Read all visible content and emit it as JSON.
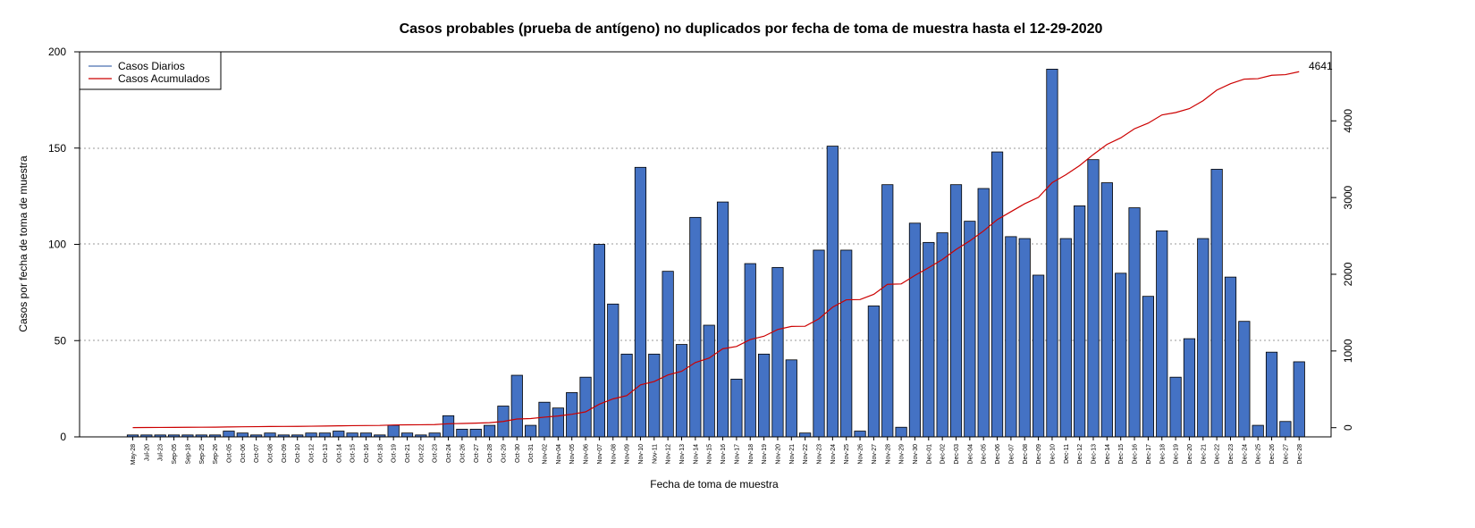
{
  "colors": {
    "bar_fill": "#4472C4",
    "bar_stroke": "#000000",
    "cumulative_line": "#CC0000",
    "daily_legend_line": "#4A72B0",
    "grid": "#999999"
  },
  "chart_data": {
    "type": "bar",
    "title": "Casos probables (prueba de antígeno) no duplicados por fecha de toma de muestra hasta el 12-29-2020",
    "xlabel": "Fecha de toma de muestra",
    "ylabel": "Casos por fecha de toma de muestra",
    "ylim": [
      0,
      200
    ],
    "y_ticks": [
      "0",
      "50",
      "100",
      "150",
      "200"
    ],
    "y2lim": [
      -120,
      4900
    ],
    "y2_ticks": [
      "0",
      "1000",
      "2000",
      "3000",
      "4000"
    ],
    "grid": "horizontal dotted at 50, 100, 150",
    "legend": {
      "placement": "top-left",
      "entries": [
        "Casos Diarios",
        "Casos Acumulados"
      ]
    },
    "end_label": "4641",
    "categories": [
      "May-28",
      "Jul-20",
      "Jul-23",
      "Sep-05",
      "Sep-18",
      "Sep-25",
      "Sep-26",
      "Oct-05",
      "Oct-06",
      "Oct-07",
      "Oct-08",
      "Oct-09",
      "Oct-10",
      "Oct-12",
      "Oct-13",
      "Oct-14",
      "Oct-15",
      "Oct-16",
      "Oct-18",
      "Oct-19",
      "Oct-21",
      "Oct-22",
      "Oct-23",
      "Oct-24",
      "Oct-26",
      "Oct-27",
      "Oct-28",
      "Oct-29",
      "Oct-30",
      "Oct-31",
      "Nov-02",
      "Nov-04",
      "Nov-05",
      "Nov-06",
      "Nov-07",
      "Nov-08",
      "Nov-09",
      "Nov-10",
      "Nov-11",
      "Nov-12",
      "Nov-13",
      "Nov-14",
      "Nov-15",
      "Nov-16",
      "Nov-17",
      "Nov-18",
      "Nov-19",
      "Nov-20",
      "Nov-21",
      "Nov-22",
      "Nov-23",
      "Nov-24",
      "Nov-25",
      "Nov-26",
      "Nov-27",
      "Nov-28",
      "Nov-29",
      "Nov-30",
      "Dec-01",
      "Dec-02",
      "Dec-03",
      "Dec-04",
      "Dec-05",
      "Dec-06",
      "Dec-07",
      "Dec-08",
      "Dec-09",
      "Dec-10",
      "Dec-11",
      "Dec-12",
      "Dec-13",
      "Dec-14",
      "Dec-15",
      "Dec-16",
      "Dec-17",
      "Dec-18",
      "Dec-19",
      "Dec-20",
      "Dec-21",
      "Dec-22",
      "Dec-23",
      "Dec-24",
      "Dec-25",
      "Dec-26",
      "Dec-27",
      "Dec-28"
    ],
    "series": [
      {
        "name": "Casos Diarios",
        "values": [
          1,
          1,
          1,
          1,
          1,
          1,
          1,
          3,
          2,
          1,
          2,
          1,
          1,
          2,
          2,
          3,
          2,
          2,
          1,
          6,
          2,
          1,
          2,
          11,
          4,
          4,
          6,
          16,
          32,
          6,
          18,
          15,
          23,
          31,
          100,
          69,
          43,
          140,
          43,
          86,
          48,
          114,
          58,
          122,
          30,
          90,
          43,
          88,
          40,
          2,
          97,
          151,
          97,
          3,
          68,
          131,
          5,
          111,
          101,
          106,
          131,
          112,
          129,
          148,
          104,
          103,
          84,
          191,
          103,
          120,
          144,
          132,
          85,
          119,
          73,
          107,
          31,
          51,
          103,
          139,
          83,
          60,
          6,
          44,
          8,
          39
        ]
      },
      {
        "name": "Casos Acumulados",
        "values": [
          1,
          2,
          3,
          4,
          5,
          6,
          7,
          10,
          12,
          13,
          15,
          16,
          17,
          19,
          21,
          24,
          26,
          28,
          29,
          35,
          37,
          38,
          40,
          51,
          55,
          59,
          65,
          81,
          113,
          119,
          137,
          152,
          175,
          206,
          306,
          375,
          418,
          558,
          601,
          687,
          735,
          849,
          907,
          1029,
          1059,
          1149,
          1192,
          1280,
          1320,
          1322,
          1419,
          1570,
          1667,
          1670,
          1738,
          1869,
          1874,
          1985,
          2086,
          2192,
          2323,
          2435,
          2564,
          2712,
          2816,
          2919,
          3003,
          3194,
          3297,
          3417,
          3561,
          3693,
          3778,
          3897,
          3970,
          4077,
          4108,
          4159,
          4262,
          4401,
          4484,
          4544,
          4550,
          4594,
          4602,
          4641
        ]
      }
    ]
  }
}
